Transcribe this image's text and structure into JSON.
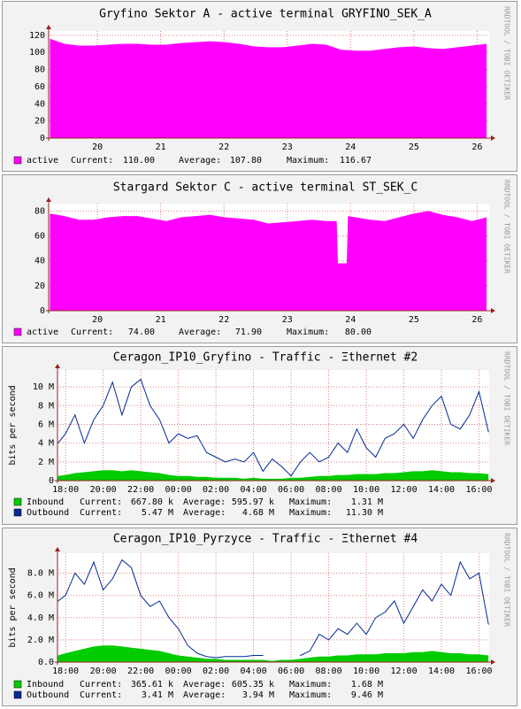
{
  "chart_data": [
    {
      "type": "area",
      "title": "Gryfino Sektor A - active terminal GRYFINO_SEK_A",
      "watermark": "RRDTOOL / TOBI OETIKER",
      "grid": true,
      "xlim": [
        19.23,
        26.19
      ],
      "xticks": [
        20,
        21,
        22,
        23,
        24,
        25,
        26
      ],
      "ylim": [
        0,
        125
      ],
      "yticks": [
        0,
        20,
        40,
        60,
        80,
        100,
        120
      ],
      "x": [
        19.25,
        19.48,
        19.71,
        19.94,
        20.17,
        20.4,
        20.63,
        20.86,
        21.09,
        21.32,
        21.55,
        21.78,
        22.01,
        22.24,
        22.47,
        22.7,
        22.93,
        23.16,
        23.39,
        23.62,
        23.85,
        24.08,
        24.31,
        24.54,
        24.77,
        25.0,
        25.23,
        25.46,
        25.69,
        25.92,
        26.15
      ],
      "series": [
        {
          "name": "active",
          "color": "#ff00ff",
          "style": "area",
          "values": [
            116,
            110,
            108,
            108,
            109,
            110,
            110,
            109,
            109,
            111,
            112,
            113,
            112,
            110,
            107,
            106,
            106,
            108,
            110,
            109,
            103,
            102,
            102,
            104,
            106,
            107,
            105,
            104,
            106,
            108,
            110
          ],
          "stats": [
            {
              "label": "Current:",
              "value": "110.00"
            },
            {
              "label": "Average:",
              "value": "107.80"
            },
            {
              "label": "Maximum:",
              "value": "116.67"
            }
          ]
        }
      ]
    },
    {
      "type": "area",
      "title": "Stargard Sektor C - active terminal ST_SEK_C",
      "watermark": "RRDTOOL / TOBI OETIKER",
      "grid": true,
      "xlim": [
        19.23,
        26.19
      ],
      "xticks": [
        20,
        21,
        22,
        23,
        24,
        25,
        26
      ],
      "ylim": [
        0,
        86
      ],
      "yticks": [
        0,
        20,
        40,
        60,
        80
      ],
      "x": [
        19.25,
        19.48,
        19.71,
        19.94,
        20.17,
        20.4,
        20.63,
        20.86,
        21.09,
        21.32,
        21.55,
        21.78,
        22.01,
        22.24,
        22.47,
        22.7,
        22.93,
        23.16,
        23.39,
        23.62,
        23.78,
        23.8,
        23.94,
        23.96,
        24.08,
        24.31,
        24.54,
        24.77,
        25.0,
        25.23,
        25.46,
        25.69,
        25.92,
        26.15
      ],
      "series": [
        {
          "name": "active",
          "color": "#ff00ff",
          "style": "area",
          "values": [
            78,
            76,
            73,
            73,
            75,
            76,
            76,
            74,
            72,
            75,
            76,
            77,
            75,
            74,
            73,
            70,
            71,
            72,
            73,
            72,
            72,
            38,
            38,
            76,
            75,
            73,
            72,
            75,
            78,
            80,
            77,
            75,
            72,
            75
          ],
          "stats": [
            {
              "label": "Current:",
              "value": "74.00"
            },
            {
              "label": "Average:",
              "value": "71.90"
            },
            {
              "label": "Maximum:",
              "value": "80.00"
            }
          ]
        }
      ]
    },
    {
      "type": "area",
      "title": "Ceragon_IP10_Gryfino - Traffic - Ξthernet #2",
      "watermark": "RRDTOOL / TOBI OETIKER",
      "y_label": "bits per second",
      "grid": true,
      "xlim": [
        -0.43,
        22.54
      ],
      "xticks": [
        {
          "value": 0,
          "label": "18:00"
        },
        {
          "value": 2,
          "label": "20:00"
        },
        {
          "value": 4,
          "label": "22:00"
        },
        {
          "value": 6,
          "label": "00:00"
        },
        {
          "value": 8,
          "label": "02:00"
        },
        {
          "value": 10,
          "label": "04:00"
        },
        {
          "value": 12,
          "label": "06:00"
        },
        {
          "value": 14,
          "label": "08:00"
        },
        {
          "value": 16,
          "label": "10:00"
        },
        {
          "value": 18,
          "label": "12:00"
        },
        {
          "value": 20,
          "label": "14:00"
        },
        {
          "value": 22,
          "label": "16:00"
        }
      ],
      "ylim": [
        0,
        11800000
      ],
      "yticks": [
        0,
        {
          "value": 2000000,
          "label": "2 M"
        },
        {
          "value": 4000000,
          "label": "4 M"
        },
        {
          "value": 6000000,
          "label": "6 M"
        },
        {
          "value": 8000000,
          "label": "8 M"
        },
        {
          "value": 10000000,
          "label": "10 M"
        }
      ],
      "x": [
        -0.4,
        0,
        0.5,
        1,
        1.5,
        2,
        2.5,
        3,
        3.5,
        4,
        4.5,
        5,
        5.5,
        6,
        6.5,
        7,
        7.5,
        8,
        8.5,
        9,
        9.5,
        10,
        10.5,
        11,
        11.5,
        12,
        12.5,
        13,
        13.5,
        14,
        14.5,
        15,
        15.5,
        16,
        16.5,
        17,
        17.5,
        18,
        18.5,
        19,
        19.5,
        20,
        20.5,
        21,
        21.5,
        22,
        22.5
      ],
      "series": [
        {
          "name": "Inbound",
          "color": "#00cc00",
          "style": "area",
          "values": [
            500000,
            600000,
            800000,
            900000,
            1000000,
            1100000,
            1100000,
            1000000,
            1100000,
            1000000,
            900000,
            800000,
            600000,
            500000,
            500000,
            400000,
            400000,
            300000,
            300000,
            300000,
            200000,
            300000,
            200000,
            200000,
            200000,
            300000,
            300000,
            400000,
            500000,
            500000,
            600000,
            600000,
            700000,
            700000,
            700000,
            800000,
            800000,
            900000,
            1000000,
            1000000,
            1100000,
            1000000,
            900000,
            900000,
            800000,
            800000,
            700000
          ],
          "stats": [
            {
              "label": "Current:",
              "value": "667.80 k"
            },
            {
              "label": "Average:",
              "value": "595.97 k"
            },
            {
              "label": "Maximum:",
              "value": "1.31 M"
            }
          ]
        },
        {
          "name": "Outbound",
          "color": "#002a97",
          "style": "line",
          "values": [
            4000000,
            5000000,
            7000000,
            4000000,
            6500000,
            8000000,
            10500000,
            7000000,
            10000000,
            10800000,
            8000000,
            6500000,
            4000000,
            5000000,
            4500000,
            4800000,
            3000000,
            2500000,
            2000000,
            2300000,
            2000000,
            3000000,
            1000000,
            2300000,
            1500000,
            500000,
            2000000,
            3000000,
            2000000,
            2500000,
            4000000,
            3000000,
            5500000,
            3500000,
            2500000,
            4500000,
            5000000,
            6000000,
            4500000,
            6500000,
            8000000,
            9000000,
            6000000,
            5500000,
            7000000,
            9500000,
            5200000
          ],
          "stats": [
            {
              "label": "Current:",
              "value": "5.47 M"
            },
            {
              "label": "Average:",
              "value": "4.68 M"
            },
            {
              "label": "Maximum:",
              "value": "11.30 M"
            }
          ]
        }
      ]
    },
    {
      "type": "area",
      "title": "Ceragon_IP10_Pyrzyce - Traffic - Ξthernet #4",
      "watermark": "RRDTOOL / TOBI OETIKER",
      "y_label": "bits per second",
      "grid": true,
      "xlim": [
        -0.43,
        22.54
      ],
      "xticks": [
        {
          "value": 0,
          "label": "18:00"
        },
        {
          "value": 2,
          "label": "20:00"
        },
        {
          "value": 4,
          "label": "22:00"
        },
        {
          "value": 6,
          "label": "00:00"
        },
        {
          "value": 8,
          "label": "02:00"
        },
        {
          "value": 10,
          "label": "04:00"
        },
        {
          "value": 12,
          "label": "06:00"
        },
        {
          "value": 14,
          "label": "08:00"
        },
        {
          "value": 16,
          "label": "10:00"
        },
        {
          "value": 18,
          "label": "12:00"
        },
        {
          "value": 20,
          "label": "14:00"
        },
        {
          "value": 22,
          "label": "16:00"
        }
      ],
      "ylim": [
        0,
        9800000
      ],
      "yticks": [
        {
          "value": 0,
          "label": "0.0"
        },
        {
          "value": 2000000,
          "label": "2.0 M"
        },
        {
          "value": 4000000,
          "label": "4.0 M"
        },
        {
          "value": 6000000,
          "label": "6.0 M"
        },
        {
          "value": 8000000,
          "label": "8.0 M"
        }
      ],
      "x": [
        -0.4,
        0,
        0.5,
        1,
        1.5,
        2,
        2.5,
        3,
        3.5,
        4,
        4.5,
        5,
        5.5,
        6,
        6.5,
        7,
        7.5,
        8,
        8.5,
        9,
        9.5,
        10,
        10.5,
        11,
        11.5,
        12,
        12.5,
        13,
        13.5,
        14,
        14.5,
        15,
        15.5,
        16,
        16.5,
        17,
        17.5,
        18,
        18.5,
        19,
        19.5,
        20,
        20.5,
        21,
        21.5,
        22,
        22.5
      ],
      "series": [
        {
          "name": "Inbound",
          "color": "#00cc00",
          "style": "area",
          "values": [
            600000,
            800000,
            1000000,
            1200000,
            1400000,
            1500000,
            1500000,
            1400000,
            1300000,
            1200000,
            1100000,
            1000000,
            800000,
            600000,
            500000,
            400000,
            300000,
            300000,
            200000,
            200000,
            200000,
            200000,
            200000,
            100000,
            200000,
            200000,
            300000,
            400000,
            500000,
            500000,
            600000,
            600000,
            700000,
            700000,
            700000,
            800000,
            800000,
            800000,
            900000,
            900000,
            1000000,
            900000,
            800000,
            800000,
            700000,
            700000,
            600000
          ],
          "stats": [
            {
              "label": "Current:",
              "value": "365.61 k"
            },
            {
              "label": "Average:",
              "value": "605.35 k"
            },
            {
              "label": "Maximum:",
              "value": "1.68 M"
            }
          ]
        },
        {
          "name": "Outbound",
          "color": "#002a97",
          "style": "line",
          "values": [
            5500000,
            6000000,
            8000000,
            7000000,
            9000000,
            6500000,
            7500000,
            9200000,
            8500000,
            6000000,
            5000000,
            5500000,
            4000000,
            3000000,
            1500000,
            800000,
            500000,
            400000,
            500000,
            500000,
            500000,
            600000,
            600000,
            null,
            800000,
            null,
            600000,
            1000000,
            2500000,
            2000000,
            3000000,
            2500000,
            3500000,
            2500000,
            4000000,
            4500000,
            5500000,
            3500000,
            5000000,
            6500000,
            5500000,
            7000000,
            6000000,
            9000000,
            7500000,
            8000000,
            3400000
          ],
          "stats": [
            {
              "label": "Current:",
              "value": "3.41 M"
            },
            {
              "label": "Average:",
              "value": "3.94 M"
            },
            {
              "label": "Maximum:",
              "value": "9.46 M"
            }
          ]
        }
      ]
    }
  ]
}
